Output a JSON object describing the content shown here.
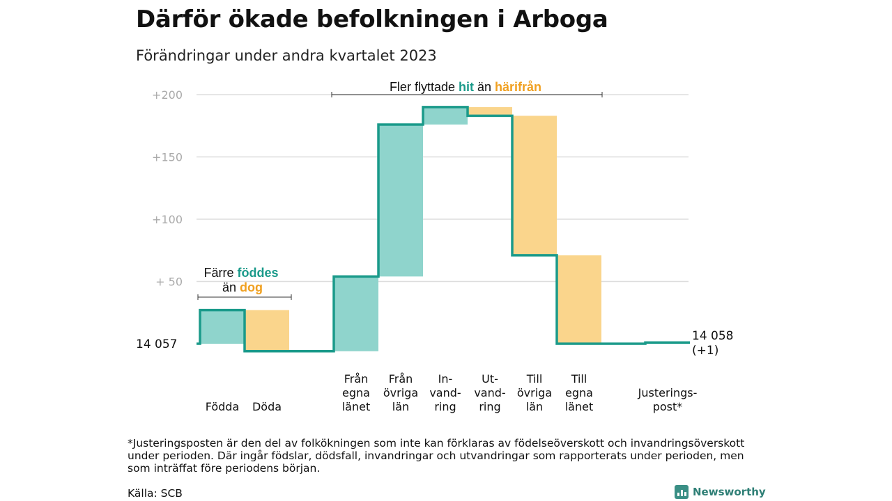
{
  "title": "Därför ökade befolkningen i Arboga",
  "subtitle": "Förändringar under andra kvartalet 2023",
  "footnote": "*Justeringsposten är den del av folkökningen som inte kan förklaras av födelseöverskott och invandringsöverskott under perioden. Där ingår födslar, dödsfall, invandringar och utvandringar som rapporterats under perioden, men som inträffat före periodens början.",
  "source": "Källa: SCB",
  "brand": "Newsworthy",
  "colors": {
    "positive": "#8fd4cc",
    "negative": "#fad58c",
    "line": "#1a9a8a",
    "accent_teal": "#1a9a8a",
    "accent_orange": "#f0a020",
    "grid": "#dddddd",
    "tick": "#aaaaaa"
  },
  "chart_data": {
    "type": "waterfall",
    "start_label": "14  057",
    "end_label": [
      "14 058",
      "(+1)"
    ],
    "y_ticks": [
      "+200",
      "+150",
      "+100",
      "+  50"
    ],
    "ylim": [
      -10,
      200
    ],
    "y_tick_values": [
      200,
      150,
      100,
      50
    ],
    "steps": [
      {
        "label": [
          "Födda"
        ],
        "value": 27
      },
      {
        "label": [
          "Döda"
        ],
        "value": -33
      },
      {
        "label": [
          "Från",
          "egna",
          "länet"
        ],
        "value": 60
      },
      {
        "label": [
          "Från",
          "övriga",
          "län"
        ],
        "value": 122
      },
      {
        "label": [
          "In-",
          "vand-",
          "ring"
        ],
        "value": 14
      },
      {
        "label": [
          "Ut-",
          "vand-",
          "ring"
        ],
        "value": -7
      },
      {
        "label": [
          "Till",
          "övriga",
          "län"
        ],
        "value": -112
      },
      {
        "label": [
          "Till",
          "egna",
          "länet"
        ],
        "value": -71
      },
      {
        "label": [
          "Justerings-",
          "post*"
        ],
        "value": 1
      }
    ],
    "annotations": [
      {
        "parts": [
          {
            "text": "Färre ",
            "style": "plain"
          },
          {
            "text": "föddes",
            "style": "teal"
          },
          {
            "text": "än ",
            "style": "plain",
            "newline": true
          },
          {
            "text": "dog",
            "style": "orange"
          }
        ]
      },
      {
        "parts": [
          {
            "text": "Fler flyttade ",
            "style": "plain"
          },
          {
            "text": "hit",
            "style": "teal"
          },
          {
            "text": " än ",
            "style": "plain"
          },
          {
            "text": "härifrån",
            "style": "orange"
          }
        ]
      }
    ]
  }
}
